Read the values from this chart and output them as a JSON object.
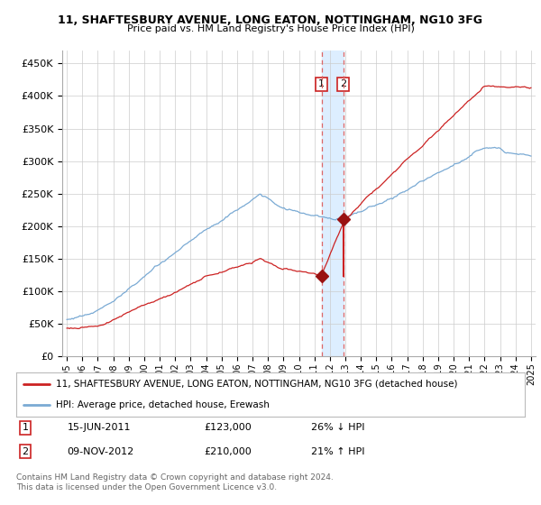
{
  "title": "11, SHAFTESBURY AVENUE, LONG EATON, NOTTINGHAM, NG10 3FG",
  "subtitle": "Price paid vs. HM Land Registry's House Price Index (HPI)",
  "legend_line1": "11, SHAFTESBURY AVENUE, LONG EATON, NOTTINGHAM, NG10 3FG (detached house)",
  "legend_line2": "HPI: Average price, detached house, Erewash",
  "annotation1_date": "15-JUN-2011",
  "annotation1_price": "£123,000",
  "annotation1_hpi": "26% ↓ HPI",
  "annotation2_date": "09-NOV-2012",
  "annotation2_price": "£210,000",
  "annotation2_hpi": "21% ↑ HPI",
  "footer": "Contains HM Land Registry data © Crown copyright and database right 2024.\nThis data is licensed under the Open Government Licence v3.0.",
  "hpi_color": "#7aaad4",
  "price_color": "#cc2222",
  "marker_color": "#991111",
  "vline_color": "#dd6666",
  "annotation_box_color": "#cc2222",
  "highlight_color": "#ddeeff",
  "ylim": [
    0,
    470000
  ],
  "yticks": [
    0,
    50000,
    100000,
    150000,
    200000,
    250000,
    300000,
    350000,
    400000,
    450000
  ],
  "t1": 2011.46,
  "t2": 2012.87,
  "v1": 123000,
  "v2": 210000
}
